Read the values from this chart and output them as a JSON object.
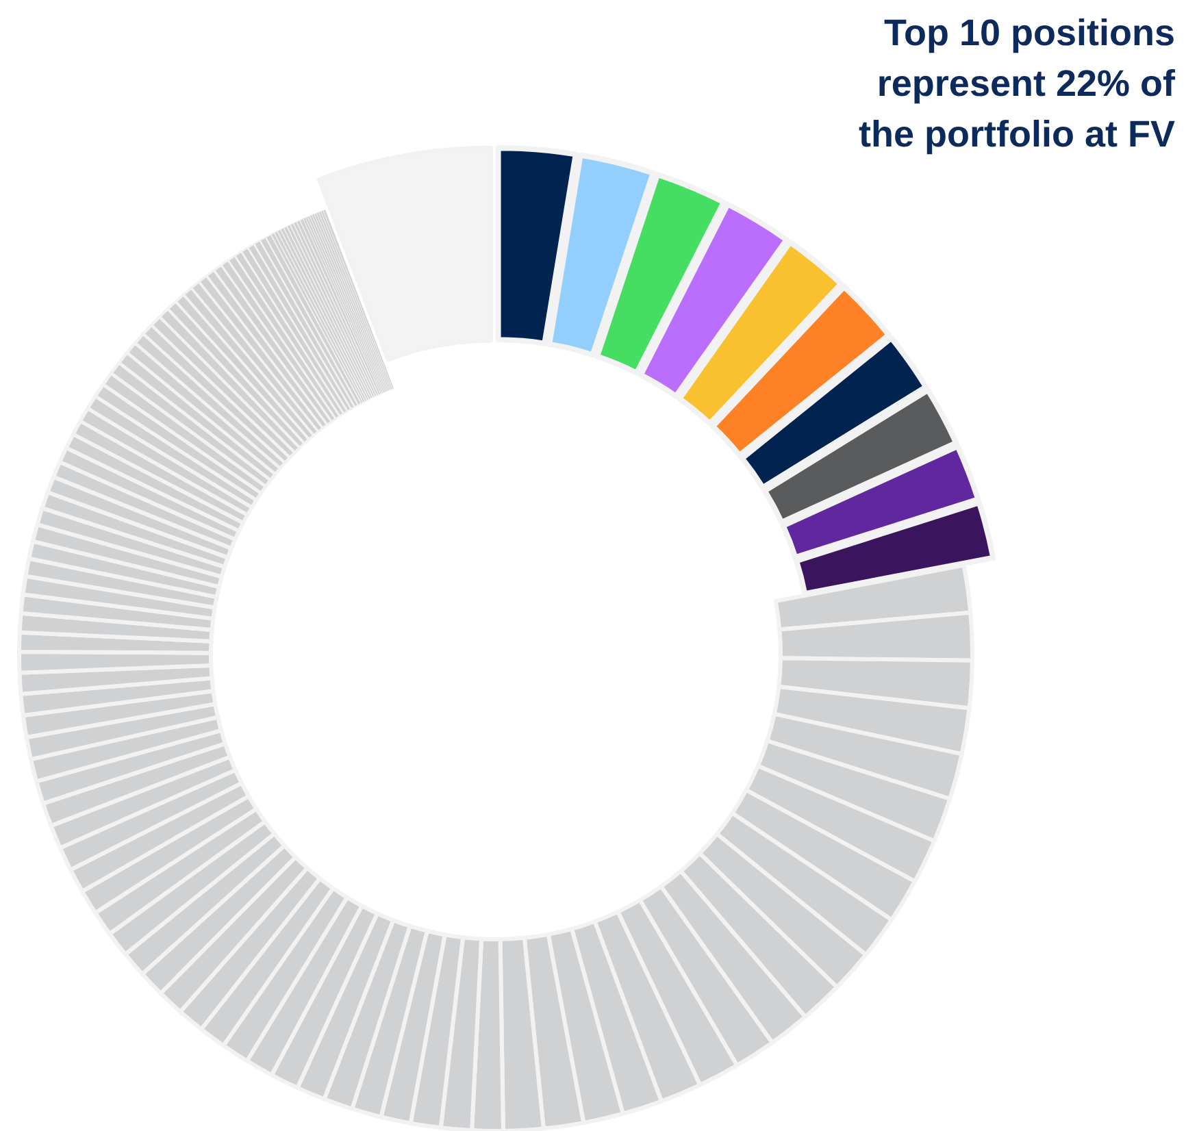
{
  "chart_data": {
    "type": "donut",
    "title": "Top 10 positions\nrepresent 22% of\nthe portfolio at FV",
    "categories": [
      null,
      null,
      null,
      null,
      null,
      null,
      null,
      null,
      null,
      null,
      null,
      null,
      null,
      null,
      null,
      null,
      null,
      null,
      null,
      null,
      null,
      null,
      null,
      null,
      null,
      null,
      null,
      null,
      null,
      null,
      null,
      null,
      null,
      null,
      null,
      null,
      null,
      null,
      null,
      null,
      null,
      null,
      null,
      null,
      null,
      null,
      null,
      null,
      null,
      null,
      null,
      null,
      null,
      null,
      null,
      null,
      null,
      null,
      null,
      null,
      null,
      null,
      null,
      null,
      null,
      null,
      null,
      null,
      null,
      null,
      null,
      null,
      null,
      null,
      null,
      null,
      null,
      null,
      null,
      null,
      null,
      null,
      null,
      null,
      null,
      null,
      null,
      null,
      null,
      null,
      null,
      null,
      null,
      null,
      null,
      null,
      null,
      null,
      null,
      null,
      null,
      null,
      null,
      null,
      null,
      null,
      null,
      null,
      null,
      null,
      null,
      null,
      null,
      null,
      null,
      null,
      null,
      null,
      null
    ],
    "values": [
      2.6,
      2.5,
      2.4,
      2.3,
      2.2,
      2.2,
      2.0,
      2.0,
      1.9,
      1.9,
      1.6,
      1.6,
      1.6,
      1.55,
      1.55,
      1.5,
      1.5,
      1.5,
      1.45,
      1.45,
      1.45,
      1.4,
      1.4,
      1.4,
      1.4,
      1.35,
      1.35,
      1.35,
      1.35,
      1.05,
      1.04,
      1.02,
      1.01,
      1.0,
      0.99,
      0.97,
      0.96,
      0.95,
      0.94,
      0.92,
      0.91,
      0.9,
      0.89,
      0.87,
      0.86,
      0.85,
      0.84,
      0.82,
      0.81,
      0.8,
      0.79,
      0.77,
      0.76,
      0.75,
      0.74,
      0.72,
      0.71,
      0.7,
      0.65,
      0.64,
      0.63,
      0.62,
      0.6,
      0.59,
      0.58,
      0.57,
      0.56,
      0.55,
      0.54,
      0.52,
      0.51,
      0.5,
      0.49,
      0.48,
      0.47,
      0.46,
      0.44,
      0.43,
      0.42,
      0.41,
      0.4,
      0.39,
      0.38,
      0.36,
      0.35,
      0.34,
      0.33,
      0.32,
      0.31,
      0.3,
      0.28,
      0.27,
      0.26,
      0.25,
      0.24,
      0.23,
      0.22,
      0.2,
      0.12,
      0.12,
      0.12,
      0.12,
      0.12,
      0.12,
      0.12,
      0.12,
      0.12,
      0.12,
      0.08,
      0.08,
      0.08,
      0.08,
      0.08,
      0.08,
      0.08,
      0.08,
      0.08,
      0.08,
      5.82
    ],
    "colors": [
      "#00234f",
      "#93cffd",
      "#46dd63",
      "#bb6efd",
      "#f9c02f",
      "#fe8125",
      "#00234f",
      "#5a5b5d",
      "#61279e",
      "#3a145d",
      "#d0d1d3",
      "#d0d1d3",
      "#d0d1d3",
      "#d0d1d3",
      "#d0d1d3",
      "#d0d1d3",
      "#d0d1d3",
      "#d0d1d3",
      "#d0d1d3",
      "#d0d1d3",
      "#d0d1d3",
      "#d0d1d3",
      "#d0d1d3",
      "#d0d1d3",
      "#d0d1d3",
      "#d0d1d3",
      "#d0d1d3",
      "#d0d1d3",
      "#d0d1d3",
      "#d0d1d3",
      "#d0d1d3",
      "#d0d1d3",
      "#d0d1d3",
      "#d0d1d3",
      "#d0d1d3",
      "#d0d1d3",
      "#d0d1d3",
      "#d0d1d3",
      "#d0d1d3",
      "#d0d1d3",
      "#d0d1d3",
      "#d0d1d3",
      "#d0d1d3",
      "#d0d1d3",
      "#d0d1d3",
      "#d0d1d3",
      "#d0d1d3",
      "#d0d1d3",
      "#d0d1d3",
      "#d0d1d3",
      "#d0d1d3",
      "#d0d1d3",
      "#d0d1d3",
      "#d0d1d3",
      "#d0d1d3",
      "#d0d1d3",
      "#d0d1d3",
      "#d0d1d3",
      "#d0d1d3",
      "#d0d1d3",
      "#d0d1d3",
      "#d0d1d3",
      "#d0d1d3",
      "#d0d1d3",
      "#d0d1d3",
      "#d0d1d3",
      "#d0d1d3",
      "#d0d1d3",
      "#d0d1d3",
      "#d0d1d3",
      "#d0d1d3",
      "#d0d1d3",
      "#d0d1d3",
      "#d0d1d3",
      "#d0d1d3",
      "#d0d1d3",
      "#d0d1d3",
      "#d0d1d3",
      "#d0d1d3",
      "#d0d1d3",
      "#d0d1d3",
      "#d0d1d3",
      "#d0d1d3",
      "#d0d1d3",
      "#d0d1d3",
      "#d0d1d3",
      "#d0d1d3",
      "#d0d1d3",
      "#d0d1d3",
      "#d0d1d3",
      "#d0d1d3",
      "#d0d1d3",
      "#d0d1d3",
      "#d0d1d3",
      "#d0d1d3",
      "#d0d1d3",
      "#d0d1d3",
      "#d0d1d3",
      "#d0d1d3",
      "#d0d1d3",
      "#d0d1d3",
      "#d0d1d3",
      "#d0d1d3",
      "#d0d1d3",
      "#d0d1d3",
      "#d0d1d3",
      "#d0d1d3",
      "#d0d1d3",
      "#d0d1d3",
      "#d0d1d3",
      "#d0d1d3",
      "#d0d1d3",
      "#d0d1d3",
      "#d0d1d3",
      "#d0d1d3",
      "#d0d1d3",
      "#d0d1d3",
      "#d0d1d3",
      "#f3f3f3"
    ]
  }
}
